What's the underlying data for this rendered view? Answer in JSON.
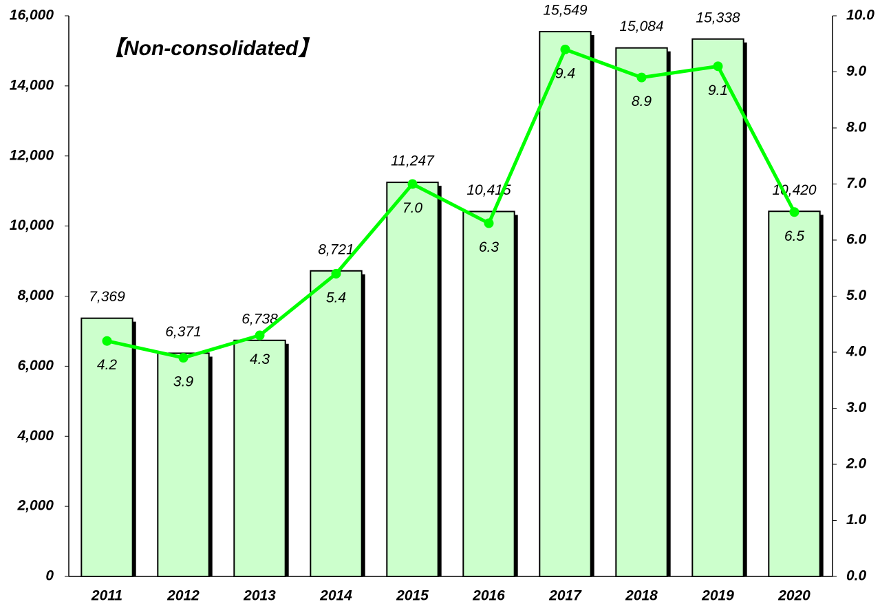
{
  "chart_data": {
    "type": "bar",
    "annotation": "【Non-consolidated】",
    "categories": [
      "2011",
      "2012",
      "2013",
      "2014",
      "2015",
      "2016",
      "2017",
      "2018",
      "2019",
      "2020"
    ],
    "series": [
      {
        "type": "bar",
        "color": "#ccffcc",
        "values": [
          7369,
          6371,
          6738,
          8721,
          11247,
          10415,
          15549,
          15084,
          15338,
          10420
        ],
        "value_labels": [
          "7,369",
          "6,371",
          "6,738",
          "8,721",
          "11,247",
          "10,415",
          "15,549",
          "15,084",
          "15,338",
          "10,420"
        ]
      },
      {
        "type": "line",
        "axis": "y2",
        "color": "#00ff00",
        "values": [
          4.2,
          3.9,
          4.3,
          5.4,
          7.0,
          6.3,
          9.4,
          8.9,
          9.1,
          6.5
        ],
        "value_labels": [
          "4.2",
          "3.9",
          "4.3",
          "5.4",
          "7.0",
          "6.3",
          "9.4",
          "8.9",
          "9.1",
          "6.5"
        ]
      }
    ],
    "ylim": [
      0,
      16000
    ],
    "yticks": [
      0,
      {
        "value": 2000,
        "label": "2,000"
      },
      {
        "value": 4000,
        "label": "4,000"
      },
      {
        "value": 6000,
        "label": "6,000"
      },
      {
        "value": 8000,
        "label": "8,000"
      },
      {
        "value": 10000,
        "label": "10,000"
      },
      {
        "value": 12000,
        "label": "12,000"
      },
      {
        "value": 14000,
        "label": "14,000"
      },
      {
        "value": 16000,
        "label": "16,000"
      }
    ],
    "y2lim": [
      0,
      10
    ],
    "y2ticks": [
      {
        "value": 0,
        "label": "0.0"
      },
      {
        "value": 1,
        "label": "1.0"
      },
      {
        "value": 2,
        "label": "2.0"
      },
      {
        "value": 3,
        "label": "3.0"
      },
      {
        "value": 4,
        "label": "4.0"
      },
      {
        "value": 5,
        "label": "5.0"
      },
      {
        "value": 6,
        "label": "6.0"
      },
      {
        "value": 7,
        "label": "7.0"
      },
      {
        "value": 8,
        "label": "8.0"
      },
      {
        "value": 9,
        "label": "9.0"
      },
      {
        "value": 10,
        "label": "10.0"
      }
    ],
    "grid": false
  }
}
